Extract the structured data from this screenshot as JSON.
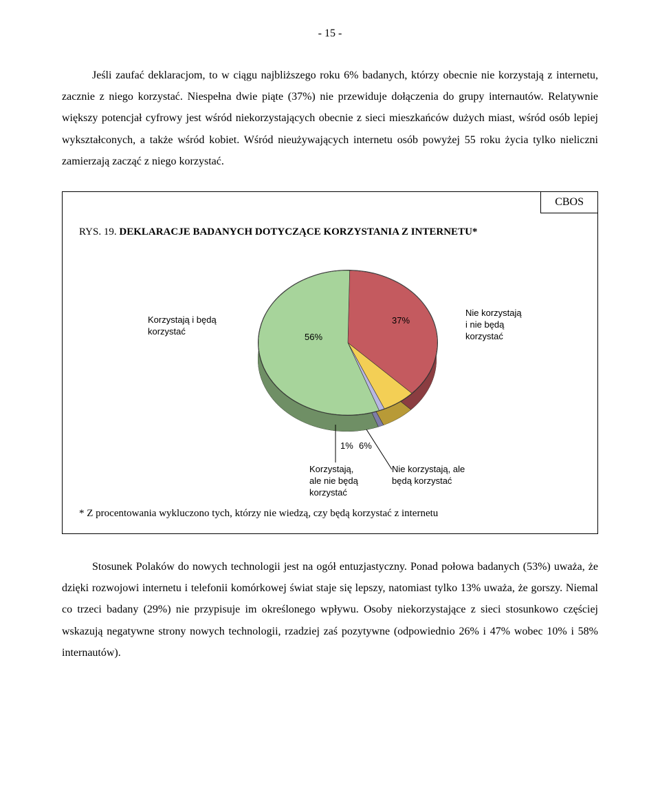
{
  "page_number": "- 15 -",
  "paragraph_top": "Jeśli zaufać deklaracjom, to w ciągu najbliższego roku 6% badanych, którzy obecnie nie korzystają z internetu, zacznie z niego korzystać. Niespełna dwie piąte (37%) nie przewiduje dołączenia do grupy internautów. Relatywnie większy potencjał cyfrowy jest wśród niekorzystających obecnie z sieci mieszkańców dużych miast, wśród osób lepiej wykształconych, a także wśród kobiet. Wśród nieużywających internetu osób powyżej 55 roku życia tylko nieliczni zamierzają zacząć z niego korzystać.",
  "cbos": "CBOS",
  "fig_label": "RYS. 19.",
  "fig_title": "DEKLARACJE BADANYCH DOTYCZĄCE KORZYSTANIA Z INTERNETU*",
  "chart": {
    "type": "pie",
    "slices": [
      {
        "label_lines": [
          "Korzystają i będą",
          "korzystać"
        ],
        "pct_text": "56%",
        "value": 56,
        "color": "#a7d49b",
        "side_color": "#6f8f65"
      },
      {
        "label_lines": [
          "Nie korzystają",
          "i nie będą",
          "korzystać"
        ],
        "pct_text": "37%",
        "value": 37,
        "color": "#c45a5f",
        "side_color": "#8b3d41"
      },
      {
        "label_lines": [
          "Nie korzystają, ale",
          "będą korzystać"
        ],
        "pct_text": "6%",
        "value": 6,
        "color": "#f3cf55",
        "side_color": "#b89a37"
      },
      {
        "label_lines": [
          "Korzystają,",
          "ale nie będą",
          "korzystać"
        ],
        "pct_text": "1%",
        "value": 1,
        "color": "#b8b7e2",
        "side_color": "#7e7da8"
      }
    ],
    "background_color": "#ffffff",
    "label_fontsize": 13,
    "label_font": "Arial"
  },
  "footnote": "* Z procentowania wykluczono tych, którzy nie wiedzą, czy będą korzystać z internetu",
  "paragraph_bottom": "Stosunek Polaków do nowych technologii jest na ogół entuzjastyczny. Ponad połowa badanych (53%) uważa, że dzięki rozwojowi internetu i telefonii komórkowej świat staje się lepszy, natomiast tylko 13% uważa, że gorszy. Niemal co trzeci badany (29%) nie przypisuje im określonego wpływu. Osoby niekorzystające z sieci stosunkowo częściej wskazują negatywne strony nowych technologii, rzadziej zaś pozytywne (odpowiednio 26% i 47% wobec 10% i 58% internautów)."
}
